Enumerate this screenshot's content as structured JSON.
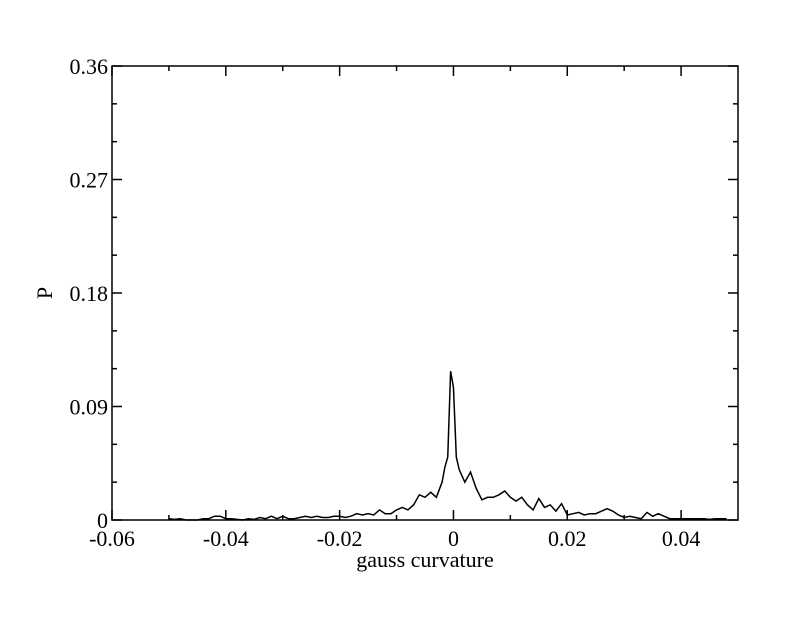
{
  "chart_data": {
    "type": "line",
    "xlabel": "gauss curvature",
    "ylabel": "P",
    "xlim": [
      -0.06,
      0.05
    ],
    "ylim": [
      0,
      0.36
    ],
    "xticks": [
      -0.06,
      -0.04,
      -0.02,
      0,
      0.02,
      0.04
    ],
    "yticks": [
      0,
      0.09,
      0.18,
      0.27,
      0.36
    ],
    "xminor": [
      -0.05,
      -0.03,
      -0.01,
      0.01,
      0.03
    ],
    "yminor": [
      0.03,
      0.06,
      0.12,
      0.15,
      0.21,
      0.24,
      0.3,
      0.33
    ],
    "series": [
      {
        "color": "#000000",
        "x": [
          -0.05,
          -0.049,
          -0.048,
          -0.047,
          -0.046,
          -0.045,
          -0.044,
          -0.043,
          -0.042,
          -0.041,
          -0.04,
          -0.039,
          -0.038,
          -0.037,
          -0.036,
          -0.035,
          -0.034,
          -0.033,
          -0.032,
          -0.031,
          -0.03,
          -0.029,
          -0.028,
          -0.027,
          -0.026,
          -0.025,
          -0.024,
          -0.023,
          -0.022,
          -0.021,
          -0.02,
          -0.019,
          -0.018,
          -0.017,
          -0.016,
          -0.015,
          -0.014,
          -0.013,
          -0.012,
          -0.011,
          -0.01,
          -0.009,
          -0.008,
          -0.007,
          -0.006,
          -0.005,
          -0.004,
          -0.003,
          -0.002,
          -0.0015,
          -0.001,
          -0.0005,
          0,
          0.0005,
          0.001,
          0.002,
          0.003,
          0.004,
          0.005,
          0.006,
          0.007,
          0.008,
          0.009,
          0.01,
          0.011,
          0.012,
          0.013,
          0.014,
          0.015,
          0.016,
          0.017,
          0.018,
          0.019,
          0.02,
          0.021,
          0.022,
          0.023,
          0.024,
          0.025,
          0.026,
          0.027,
          0.028,
          0.029,
          0.03,
          0.031,
          0.032,
          0.033,
          0.034,
          0.035,
          0.036,
          0.037,
          0.038,
          0.039,
          0.04,
          0.041,
          0.042,
          0.043,
          0.044,
          0.045,
          0.046,
          0.047,
          0.048
        ],
        "values": [
          0.001,
          0.0005,
          0.001,
          0,
          0,
          0,
          0.001,
          0.001,
          0.003,
          0.003,
          0.001,
          0.001,
          0.0005,
          0,
          0.001,
          0.0005,
          0.002,
          0.001,
          0.003,
          0.001,
          0.003,
          0.001,
          0.001,
          0.002,
          0.003,
          0.002,
          0.003,
          0.002,
          0.002,
          0.003,
          0.003,
          0.002,
          0.003,
          0.005,
          0.004,
          0.005,
          0.004,
          0.008,
          0.005,
          0.005,
          0.008,
          0.01,
          0.008,
          0.012,
          0.02,
          0.018,
          0.022,
          0.018,
          0.03,
          0.042,
          0.05,
          0.118,
          0.105,
          0.05,
          0.04,
          0.03,
          0.038,
          0.025,
          0.016,
          0.018,
          0.018,
          0.02,
          0.023,
          0.018,
          0.015,
          0.018,
          0.012,
          0.008,
          0.017,
          0.01,
          0.012,
          0.007,
          0.013,
          0.004,
          0.005,
          0.006,
          0.004,
          0.005,
          0.005,
          0.007,
          0.009,
          0.007,
          0.004,
          0.002,
          0.003,
          0.002,
          0.001,
          0.006,
          0.003,
          0.005,
          0.003,
          0.001,
          0.001,
          0.001,
          0.001,
          0.001,
          0.001,
          0.001,
          0.0005,
          0.001,
          0.001,
          0.001
        ]
      }
    ]
  }
}
